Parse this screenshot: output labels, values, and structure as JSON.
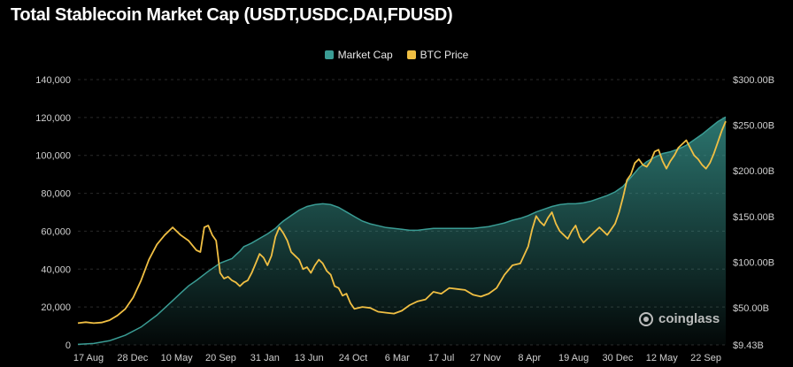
{
  "chart_data": {
    "type": "area",
    "title": "Total Stablecoin Market Cap (USDT,USDC,DAI,FDUSD)",
    "legend": {
      "placement": "top-center"
    },
    "x_ticks": [
      "17 Aug",
      "28 Dec",
      "10 May",
      "20 Sep",
      "31 Jan",
      "13 Jun",
      "24 Oct",
      "6 Mar",
      "17 Jul",
      "27 Nov",
      "8 Apr",
      "19 Aug",
      "30 Dec",
      "12 May",
      "22 Sep"
    ],
    "y_left": {
      "ticks": [
        "0",
        "20,000",
        "40,000",
        "60,000",
        "80,000",
        "100,000",
        "120,000",
        "140,000"
      ],
      "range": [
        0,
        140000
      ]
    },
    "y_right": {
      "ticks": [
        "$9.43B",
        "$50.00B",
        "$100.00B",
        "$150.00B",
        "$200.00B",
        "$250.00B",
        "$300.00B"
      ],
      "range": [
        9.43,
        300
      ]
    },
    "grid": true,
    "colors": {
      "market_cap": "#3a9c94",
      "btc_price": "#f0bf43"
    },
    "series": [
      {
        "name": "Market Cap",
        "axis": "right",
        "unit": "billion USD",
        "x": [
          0,
          20,
          40,
          60,
          80,
          100,
          120,
          130,
          140,
          150,
          165,
          180,
          195,
          200,
          205,
          210,
          215,
          220,
          230,
          240,
          250,
          256,
          260,
          270,
          280,
          290,
          300,
          310,
          320,
          330,
          340,
          350,
          360,
          370,
          380,
          390,
          400,
          410,
          420,
          430,
          440,
          450,
          460,
          470,
          480,
          490,
          500,
          510,
          520,
          530,
          540,
          550,
          560,
          570,
          580,
          590,
          600,
          610,
          620,
          630,
          640,
          650,
          660,
          670,
          680,
          690,
          700,
          710,
          720,
          730,
          740,
          750,
          760,
          770,
          780,
          790,
          800,
          810,
          820
        ],
        "y": [
          10,
          11,
          14,
          20,
          29,
          42,
          58,
          66,
          74,
          80,
          90,
          99,
          104,
          108,
          112,
          117,
          119,
          121,
          126,
          131,
          137,
          142,
          145,
          151,
          157,
          161,
          163,
          164,
          163,
          160,
          155,
          150,
          145,
          142,
          140,
          138,
          137,
          136,
          135,
          135,
          136,
          137,
          137,
          137,
          137,
          137,
          137,
          138,
          139,
          141,
          143,
          146,
          148,
          151,
          155,
          158,
          161,
          163,
          164,
          164,
          165,
          167,
          170,
          173,
          177,
          183,
          193,
          203,
          210,
          215,
          219,
          221,
          224,
          228,
          234,
          240,
          247,
          254,
          259
        ]
      },
      {
        "name": "BTC Price",
        "axis": "left",
        "unit": "USD",
        "x": [
          0,
          10,
          20,
          30,
          40,
          50,
          60,
          70,
          80,
          90,
          100,
          110,
          120,
          130,
          140,
          150,
          155,
          160,
          165,
          170,
          175,
          180,
          185,
          190,
          195,
          200,
          205,
          210,
          215,
          220,
          225,
          230,
          235,
          240,
          245,
          250,
          255,
          260,
          265,
          270,
          275,
          280,
          285,
          290,
          295,
          300,
          305,
          310,
          315,
          320,
          325,
          330,
          335,
          340,
          345,
          350,
          360,
          370,
          380,
          390,
          400,
          410,
          420,
          430,
          440,
          450,
          460,
          470,
          480,
          490,
          500,
          510,
          520,
          530,
          540,
          550,
          560,
          570,
          575,
          580,
          585,
          590,
          595,
          600,
          605,
          610,
          615,
          620,
          625,
          630,
          635,
          640,
          645,
          650,
          655,
          660,
          665,
          670,
          675,
          680,
          685,
          690,
          695,
          700,
          705,
          710,
          715,
          720,
          725,
          730,
          735,
          740,
          745,
          750,
          755,
          760,
          765,
          770,
          775,
          780,
          785,
          790,
          795,
          800,
          805,
          810,
          815,
          820
        ],
        "y": [
          11500,
          12000,
          11500,
          11800,
          13000,
          15500,
          19000,
          25000,
          34000,
          45000,
          53000,
          58000,
          62000,
          58000,
          55000,
          50000,
          49000,
          62000,
          63000,
          58000,
          55000,
          38000,
          35000,
          36000,
          34000,
          33000,
          31000,
          33000,
          34000,
          38000,
          43000,
          48000,
          46000,
          42000,
          47000,
          57000,
          62000,
          59000,
          55000,
          49000,
          47000,
          45000,
          40000,
          41000,
          38000,
          42000,
          45000,
          43000,
          39000,
          37000,
          31000,
          30000,
          26000,
          27000,
          22000,
          19000,
          20000,
          19500,
          17500,
          17000,
          16500,
          18000,
          21000,
          23000,
          24000,
          28000,
          27000,
          30000,
          29500,
          29000,
          26500,
          25500,
          27000,
          30000,
          37000,
          42000,
          43000,
          52000,
          61000,
          68000,
          65000,
          63000,
          67000,
          70000,
          64000,
          60000,
          58000,
          56000,
          60000,
          63000,
          57000,
          54000,
          56000,
          58000,
          60000,
          62000,
          60000,
          58000,
          61000,
          64000,
          70000,
          78000,
          87000,
          90000,
          96000,
          98000,
          95000,
          94000,
          97000,
          102000,
          103000,
          97000,
          93000,
          97000,
          100000,
          104000,
          106000,
          108000,
          104000,
          100000,
          98000,
          95000,
          93000,
          96000,
          101000,
          107000,
          113000,
          118000
        ]
      }
    ]
  },
  "watermark": {
    "text": "coinglass"
  }
}
